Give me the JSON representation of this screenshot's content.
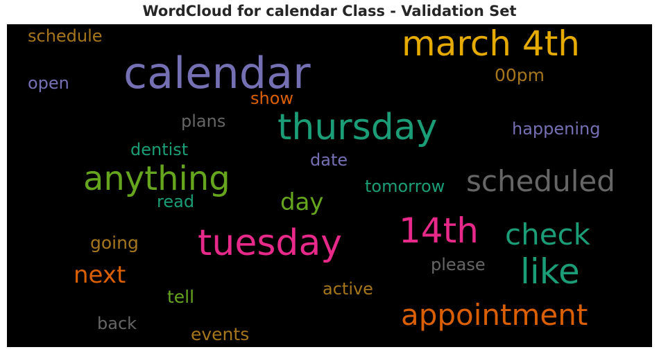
{
  "title": "WordCloud for calendar Class - Validation Set",
  "colors": {
    "background": "#000000",
    "page": "#ffffff",
    "title": "#262626"
  },
  "words": [
    {
      "id": "calendar",
      "text": "calendar",
      "color": "#7570b3"
    },
    {
      "id": "march",
      "text": "march 4th",
      "color": "#e6ab02"
    },
    {
      "id": "thursday",
      "text": "thursday",
      "color": "#1b9e77"
    },
    {
      "id": "anything",
      "text": "anything",
      "color": "#66a61e"
    },
    {
      "id": "scheduled",
      "text": "scheduled",
      "color": "#666666"
    },
    {
      "id": "tuesday",
      "text": "tuesday",
      "color": "#e7298a"
    },
    {
      "id": "14th",
      "text": "14th",
      "color": "#e7298a"
    },
    {
      "id": "check",
      "text": "check",
      "color": "#1b9e77"
    },
    {
      "id": "like",
      "text": "like",
      "color": "#1b9e77"
    },
    {
      "id": "appointment",
      "text": "appointment",
      "color": "#d95f02"
    },
    {
      "id": "next",
      "text": "next",
      "color": "#d95f02"
    },
    {
      "id": "day",
      "text": "day",
      "color": "#66a61e"
    },
    {
      "id": "schedule",
      "text": "schedule",
      "color": "#a6761d"
    },
    {
      "id": "open",
      "text": "open",
      "color": "#7570b3"
    },
    {
      "id": "00pm",
      "text": "00pm",
      "color": "#a6761d"
    },
    {
      "id": "show",
      "text": "show",
      "color": "#d95f02"
    },
    {
      "id": "plans",
      "text": "plans",
      "color": "#666666"
    },
    {
      "id": "happening",
      "text": "happening",
      "color": "#7570b3"
    },
    {
      "id": "dentist",
      "text": "dentist",
      "color": "#1b9e77"
    },
    {
      "id": "date",
      "text": "date",
      "color": "#7570b3"
    },
    {
      "id": "tomorrow",
      "text": "tomorrow",
      "color": "#1b9e77"
    },
    {
      "id": "read",
      "text": "read",
      "color": "#1b9e77"
    },
    {
      "id": "going",
      "text": "going",
      "color": "#a6761d"
    },
    {
      "id": "please",
      "text": "please",
      "color": "#666666"
    },
    {
      "id": "active",
      "text": "active",
      "color": "#a6761d"
    },
    {
      "id": "tell",
      "text": "tell",
      "color": "#66a61e"
    },
    {
      "id": "back",
      "text": "back",
      "color": "#666666"
    },
    {
      "id": "events",
      "text": "events",
      "color": "#a6761d"
    }
  ]
}
